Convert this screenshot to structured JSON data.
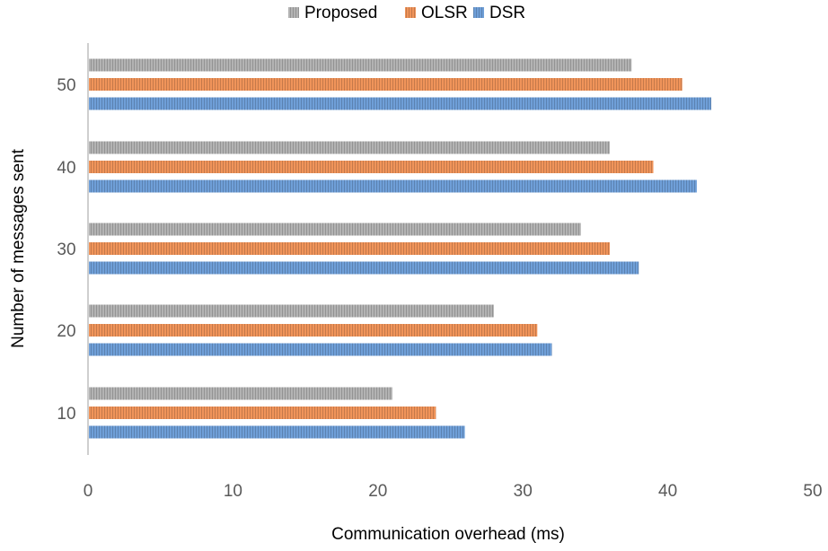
{
  "chart_data": {
    "type": "bar",
    "orientation": "horizontal",
    "xlabel": "Communication overhead (ms)",
    "ylabel": "Number of messages sent",
    "xlim": [
      0,
      50
    ],
    "x_ticks": [
      0,
      10,
      20,
      30,
      40,
      50
    ],
    "categories": [
      "10",
      "20",
      "30",
      "40",
      "50"
    ],
    "series": [
      {
        "name": "Proposed",
        "color": "#b3b3b3",
        "values": [
          21,
          28,
          34,
          36,
          37.5
        ]
      },
      {
        "name": "OLSR",
        "color": "#f0945a",
        "values": [
          24,
          31,
          36,
          39,
          41
        ]
      },
      {
        "name": "DSR",
        "color": "#6f9fd8",
        "values": [
          26,
          32,
          38,
          42,
          43
        ]
      }
    ],
    "legend_position": "top",
    "grid": false,
    "bar_pattern": "vertical-hatch"
  }
}
